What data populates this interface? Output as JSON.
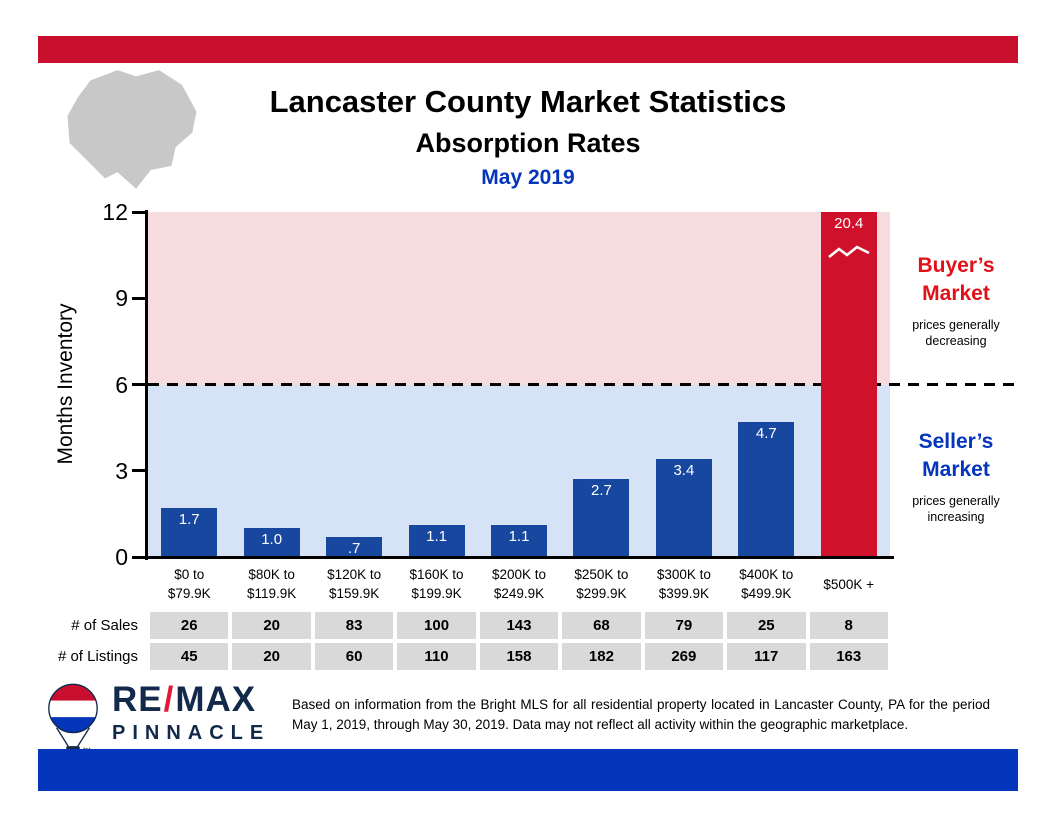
{
  "colors": {
    "brand_red": "#C8102E",
    "accent_blue": "#0535BB",
    "bar_blue": "#17479E",
    "bar_red": "#D0112B",
    "buyer_red": "#E01119",
    "zone_pink": "#F7DCDF",
    "zone_blue": "#D6E2F6",
    "table_gray": "#D9D9D9",
    "map_gray": "#C8C8C8",
    "logo_navy": "#13294B"
  },
  "header": {
    "title": "Lancaster County Market Statistics",
    "subtitle": "Absorption Rates",
    "date": "May 2019"
  },
  "chart_data": {
    "type": "bar",
    "title": "Absorption Rates — May 2019",
    "xlabel": "",
    "ylabel": "Months Inventory",
    "ylim": [
      0,
      12
    ],
    "yticks": [
      0,
      3,
      6,
      9,
      12
    ],
    "grid": false,
    "market_threshold": 6,
    "categories": [
      "$0 to\n$79.9K",
      "$80K to\n$119.9K",
      "$120K to\n$159.9K",
      "$160K to\n$199.9K",
      "$200K to\n$249.9K",
      "$250K to\n$299.9K",
      "$300K to\n$399.9K",
      "$400K to\n$499.9K",
      "$500K +"
    ],
    "values": [
      1.7,
      1.0,
      0.7,
      1.1,
      1.1,
      2.7,
      3.4,
      4.7,
      20.4
    ],
    "bar_labels": [
      "1.7",
      "1.0",
      ".7",
      "1.1",
      "1.1",
      "2.7",
      "3.4",
      "4.7",
      "20.4"
    ],
    "highlight_index": 8,
    "zones": {
      "buyer": {
        "label": "Buyer’s\nMarket",
        "sublabel": "prices generally\ndecreasing",
        "range": [
          6,
          12
        ]
      },
      "seller": {
        "label": "Seller’s\nMarket",
        "sublabel": "prices generally\nincreasing",
        "range": [
          0,
          6
        ]
      }
    }
  },
  "table": {
    "rows": [
      {
        "label": "# of Sales",
        "values": [
          "26",
          "20",
          "83",
          "100",
          "143",
          "68",
          "79",
          "25",
          "8"
        ]
      },
      {
        "label": "# of Listings",
        "values": [
          "45",
          "20",
          "60",
          "110",
          "158",
          "182",
          "269",
          "117",
          "163"
        ]
      }
    ]
  },
  "footer": {
    "logo_brand_left": "RE",
    "logo_slash": "/",
    "logo_brand_right": "MAX",
    "logo_name": "PINNACLE",
    "logo_tm": "™",
    "disclaimer": "Based on information from the Bright MLS for all residential property located in Lancaster County, PA for the period May 1, 2019, through May 30, 2019.  Data may not reflect all activity within the geographic marketplace."
  }
}
